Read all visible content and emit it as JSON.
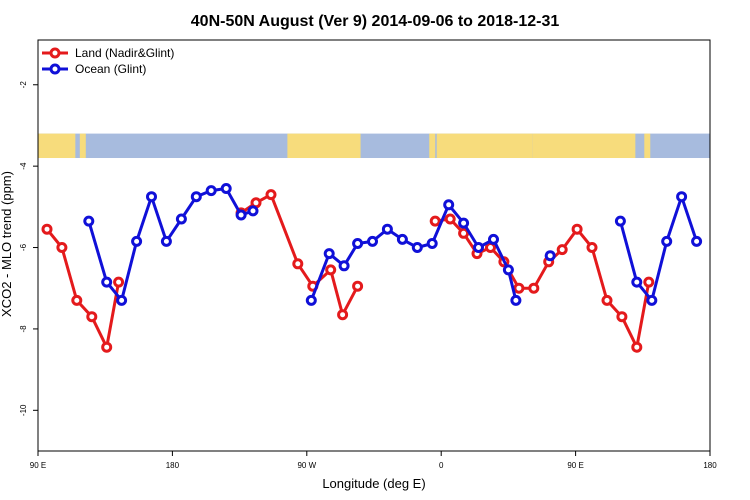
{
  "chart_data": {
    "type": "line",
    "title": "40N-50N August (Ver 9)   2014-09-06 to 2018-12-31",
    "xlabel": "Longitude (deg E)",
    "ylabel": "XCO2 - MLO trend (ppm)",
    "x_range_deg": [
      90,
      540
    ],
    "ylim": [
      -11,
      -0.9
    ],
    "x_ticks": [
      {
        "x": 90,
        "label": "90 E"
      },
      {
        "x": 180,
        "label": "180"
      },
      {
        "x": 270,
        "label": "90 W"
      },
      {
        "x": 360,
        "label": "0"
      },
      {
        "x": 450,
        "label": "90 E"
      },
      {
        "x": 540,
        "label": "180"
      }
    ],
    "y_ticks": [
      {
        "y": -2,
        "label": "-2"
      },
      {
        "y": -4,
        "label": "-4"
      },
      {
        "y": -6,
        "label": "-6"
      },
      {
        "y": -8,
        "label": "-8"
      },
      {
        "y": -10,
        "label": "-10"
      }
    ],
    "map_strip": {
      "y_top": -3.2,
      "y_bottom": -3.8,
      "land_color": "#f7dc7c",
      "ocean_color": "#a7bbde"
    },
    "legend": {
      "position": "top-left"
    },
    "series": [
      {
        "name": "Land (Nadir&Glint)",
        "color": "#e41a1c",
        "segments": [
          [
            [
              96,
              -5.55
            ],
            [
              106,
              -6.0
            ],
            [
              116,
              -7.3
            ],
            [
              126,
              -7.7
            ],
            [
              136,
              -8.45
            ],
            [
              144,
              -6.85
            ]
          ],
          [
            [
              226,
              -5.15
            ],
            [
              236,
              -4.9
            ],
            [
              246,
              -4.7
            ],
            [
              264,
              -6.4
            ],
            [
              274,
              -6.95
            ],
            [
              286,
              -6.55
            ],
            [
              294,
              -7.65
            ],
            [
              304,
              -6.95
            ]
          ],
          [
            [
              356,
              -5.35
            ],
            [
              366,
              -5.3
            ],
            [
              375,
              -5.65
            ],
            [
              384,
              -6.15
            ],
            [
              393,
              -6.0
            ],
            [
              402,
              -6.35
            ],
            [
              412,
              -7.0
            ],
            [
              422,
              -7.0
            ],
            [
              432,
              -6.35
            ],
            [
              441,
              -6.05
            ],
            [
              451,
              -5.55
            ],
            [
              461,
              -6.0
            ],
            [
              471,
              -7.3
            ],
            [
              481,
              -7.7
            ],
            [
              491,
              -8.45
            ],
            [
              499,
              -6.85
            ]
          ]
        ]
      },
      {
        "name": "Ocean (Glint)",
        "color": "#1010d8",
        "segments": [
          [
            [
              124,
              -5.35
            ],
            [
              136,
              -6.85
            ],
            [
              146,
              -7.3
            ],
            [
              156,
              -5.85
            ],
            [
              166,
              -4.75
            ],
            [
              176,
              -5.85
            ],
            [
              186,
              -5.3
            ],
            [
              196,
              -4.75
            ],
            [
              206,
              -4.6
            ],
            [
              216,
              -4.55
            ],
            [
              226,
              -5.2
            ],
            [
              234,
              -5.1
            ]
          ],
          [
            [
              273,
              -7.3
            ],
            [
              285,
              -6.15
            ],
            [
              295,
              -6.45
            ],
            [
              304,
              -5.9
            ],
            [
              314,
              -5.85
            ],
            [
              324,
              -5.55
            ],
            [
              334,
              -5.8
            ],
            [
              344,
              -6.0
            ],
            [
              354,
              -5.9
            ],
            [
              365,
              -4.95
            ],
            [
              375,
              -5.4
            ],
            [
              385,
              -6.0
            ],
            [
              395,
              -5.8
            ],
            [
              405,
              -6.55
            ],
            [
              410,
              -7.3
            ]
          ],
          [
            [
              433,
              -6.2
            ]
          ],
          [
            [
              480,
              -5.35
            ],
            [
              491,
              -6.85
            ],
            [
              501,
              -7.3
            ],
            [
              511,
              -5.85
            ],
            [
              521,
              -4.75
            ],
            [
              531,
              -5.85
            ]
          ]
        ]
      }
    ]
  }
}
